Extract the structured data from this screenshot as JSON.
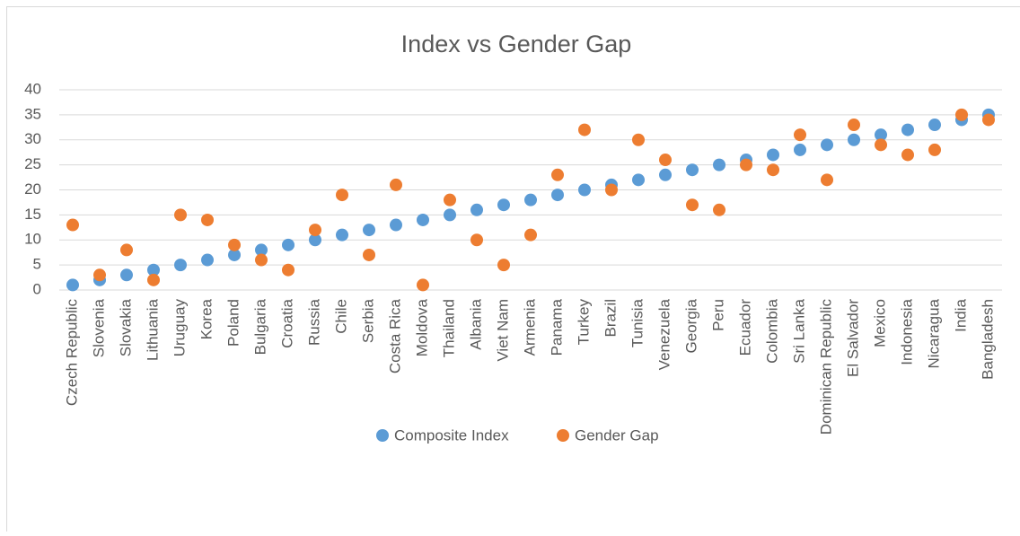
{
  "chart_data": {
    "type": "scatter",
    "title": "Index vs Gender Gap",
    "categories": [
      "Czech Republic",
      "Slovenia",
      "Slovakia",
      "Lithuania",
      "Uruguay",
      "Korea",
      "Poland",
      "Bulgaria",
      "Croatia",
      "Russia",
      "Chile",
      "Serbia",
      "Costa Rica",
      "Moldova",
      "Thailand",
      "Albania",
      "Viet Nam",
      "Armenia",
      "Panama",
      "Turkey",
      "Brazil",
      "Tunisia",
      "Venezuela",
      "Georgia",
      "Peru",
      "Ecuador",
      "Colombia",
      "Sri Lanka",
      "Dominican Republic",
      "El Salvador",
      "Mexico",
      "Indonesia",
      "Nicaragua",
      "India",
      "Bangladesh"
    ],
    "series": [
      {
        "name": "Composite Index",
        "color": "#5b9bd5",
        "values": [
          1,
          2,
          3,
          4,
          5,
          6,
          7,
          8,
          9,
          10,
          11,
          12,
          13,
          14,
          15,
          16,
          17,
          18,
          19,
          20,
          21,
          22,
          23,
          24,
          25,
          26,
          27,
          28,
          29,
          30,
          31,
          32,
          33,
          34,
          35
        ]
      },
      {
        "name": "Gender Gap",
        "color": "#ed7d31",
        "values": [
          13,
          3,
          8,
          2,
          15,
          14,
          9,
          6,
          4,
          12,
          19,
          7,
          21,
          1,
          18,
          10,
          5,
          11,
          23,
          32,
          20,
          30,
          26,
          17,
          16,
          25,
          24,
          31,
          22,
          33,
          29,
          27,
          28,
          35,
          34
        ]
      }
    ],
    "ylim": [
      0,
      40
    ],
    "yticks": [
      0,
      5,
      10,
      15,
      20,
      25,
      30,
      35,
      40
    ],
    "grid": true,
    "legend": "bottom"
  }
}
